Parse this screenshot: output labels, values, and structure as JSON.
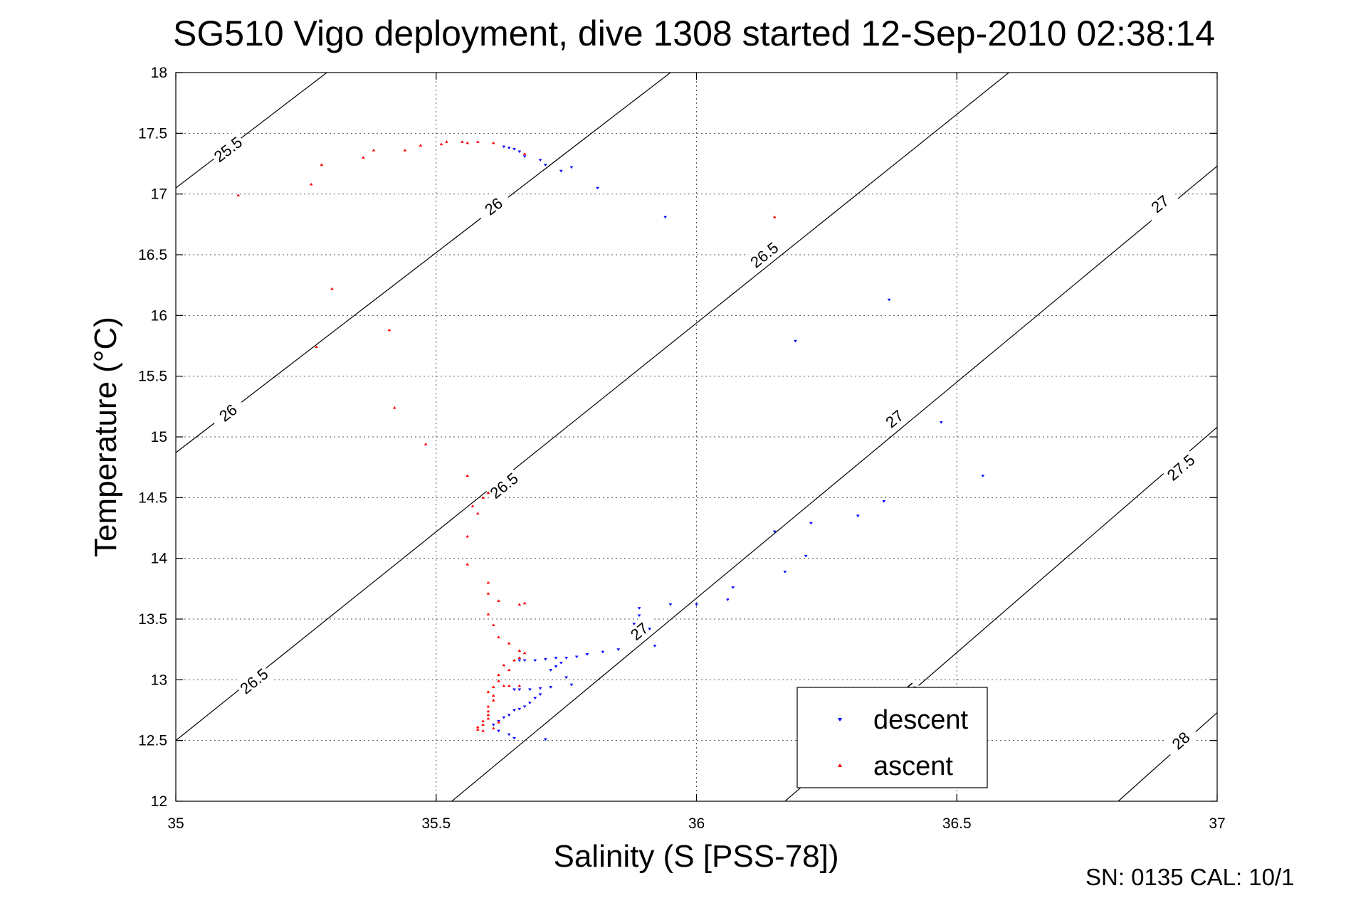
{
  "chart_data": {
    "type": "scatter",
    "title": "SG510 Vigo deployment, dive 1308 started 12-Sep-2010 02:38:14",
    "xlabel": "Salinity (S [PSS-78])",
    "ylabel": "Temperature (°C)",
    "xlim": [
      35,
      37
    ],
    "ylim": [
      12,
      18
    ],
    "x_ticks": [
      35,
      35.5,
      36,
      36.5,
      37
    ],
    "x_tick_labels": [
      "35",
      "35.5",
      "36",
      "36.5",
      "37"
    ],
    "y_ticks": [
      12,
      12.5,
      13,
      13.5,
      14,
      14.5,
      15,
      15.5,
      16,
      16.5,
      17,
      17.5,
      18
    ],
    "y_tick_labels": [
      "12",
      "12.5",
      "13",
      "13.5",
      "14",
      "14.5",
      "15",
      "15.5",
      "16",
      "16.5",
      "17",
      "17.5",
      "18"
    ],
    "grid": true,
    "legend_position": "bottom-right",
    "footer": "SN: 0135  CAL: 10/1",
    "density_contours": [
      {
        "value": 25.5,
        "label": "25.5",
        "points": [
          [
            35.0,
            17.05
          ],
          [
            35.29,
            18.0
          ]
        ],
        "label_points": [
          [
            35.1,
            17.37
          ]
        ]
      },
      {
        "value": 26,
        "label": "26",
        "points": [
          [
            35.0,
            14.87
          ],
          [
            35.95,
            18.0
          ]
        ],
        "label_points": [
          [
            35.1,
            15.2
          ],
          [
            35.61,
            16.9
          ]
        ]
      },
      {
        "value": 26.5,
        "label": "26.5",
        "points": [
          [
            35.0,
            12.5
          ],
          [
            36.6,
            18.0
          ]
        ],
        "label_points": [
          [
            35.15,
            12.99
          ],
          [
            35.63,
            14.6
          ],
          [
            36.13,
            16.5
          ]
        ]
      },
      {
        "value": 27,
        "label": "27",
        "points": [
          [
            35.53,
            12.0
          ],
          [
            37.0,
            17.23
          ]
        ],
        "label_points": [
          [
            35.89,
            13.4
          ],
          [
            36.38,
            15.15
          ],
          [
            36.89,
            16.92
          ]
        ]
      },
      {
        "value": 27.5,
        "label": "27.5",
        "points": [
          [
            36.17,
            12.0
          ],
          [
            37.0,
            15.08
          ]
        ],
        "label_points": [
          [
            36.4,
            12.87
          ],
          [
            36.93,
            14.75
          ]
        ]
      },
      {
        "value": 28,
        "label": "28",
        "points": [
          [
            36.81,
            12.0
          ],
          [
            37.0,
            12.73
          ]
        ],
        "label_points": [
          [
            36.93,
            12.5
          ]
        ]
      }
    ],
    "series": [
      {
        "name": "descent",
        "color": "#0000ff",
        "marker": "triangle-down",
        "points": [
          [
            35.63,
            17.39
          ],
          [
            35.64,
            17.38
          ],
          [
            35.65,
            17.37
          ],
          [
            35.66,
            17.35
          ],
          [
            35.67,
            17.31
          ],
          [
            35.7,
            17.28
          ],
          [
            35.71,
            17.24
          ],
          [
            35.74,
            17.19
          ],
          [
            35.76,
            17.22
          ],
          [
            35.81,
            17.05
          ],
          [
            35.94,
            16.81
          ],
          [
            36.37,
            16.13
          ],
          [
            36.19,
            15.79
          ],
          [
            36.47,
            15.12
          ],
          [
            36.55,
            14.68
          ],
          [
            36.36,
            14.47
          ],
          [
            36.31,
            14.35
          ],
          [
            36.22,
            14.29
          ],
          [
            36.15,
            14.22
          ],
          [
            36.21,
            14.02
          ],
          [
            36.17,
            13.89
          ],
          [
            36.07,
            13.76
          ],
          [
            36.06,
            13.66
          ],
          [
            36.0,
            13.62
          ],
          [
            35.95,
            13.62
          ],
          [
            35.89,
            13.59
          ],
          [
            35.89,
            13.53
          ],
          [
            35.88,
            13.46
          ],
          [
            35.91,
            13.42
          ],
          [
            35.92,
            13.28
          ],
          [
            35.85,
            13.25
          ],
          [
            35.82,
            13.23
          ],
          [
            35.79,
            13.21
          ],
          [
            35.77,
            13.19
          ],
          [
            35.75,
            13.18
          ],
          [
            35.73,
            13.18
          ],
          [
            35.71,
            13.17
          ],
          [
            35.69,
            13.16
          ],
          [
            35.67,
            13.16
          ],
          [
            35.66,
            13.16
          ],
          [
            35.74,
            13.14
          ],
          [
            35.73,
            13.11
          ],
          [
            35.72,
            13.08
          ],
          [
            35.75,
            13.02
          ],
          [
            35.76,
            12.96
          ],
          [
            35.72,
            12.94
          ],
          [
            35.7,
            12.93
          ],
          [
            35.68,
            12.92
          ],
          [
            35.66,
            12.92
          ],
          [
            35.65,
            12.92
          ],
          [
            35.7,
            12.88
          ],
          [
            35.69,
            12.85
          ],
          [
            35.68,
            12.81
          ],
          [
            35.67,
            12.78
          ],
          [
            35.66,
            12.76
          ],
          [
            35.65,
            12.75
          ],
          [
            35.64,
            12.71
          ],
          [
            35.63,
            12.69
          ],
          [
            35.62,
            12.66
          ],
          [
            35.61,
            12.63
          ],
          [
            35.62,
            12.58
          ],
          [
            35.64,
            12.55
          ],
          [
            35.65,
            12.52
          ],
          [
            35.71,
            12.51
          ]
        ]
      },
      {
        "name": "ascent",
        "color": "#ff0000",
        "marker": "triangle-up",
        "points": [
          [
            35.12,
            16.99
          ],
          [
            35.26,
            17.08
          ],
          [
            35.28,
            17.24
          ],
          [
            35.36,
            17.3
          ],
          [
            35.38,
            17.36
          ],
          [
            35.44,
            17.36
          ],
          [
            35.47,
            17.4
          ],
          [
            35.51,
            17.41
          ],
          [
            35.52,
            17.43
          ],
          [
            35.55,
            17.43
          ],
          [
            35.56,
            17.42
          ],
          [
            35.58,
            17.43
          ],
          [
            35.61,
            17.42
          ],
          [
            35.67,
            17.33
          ],
          [
            36.15,
            16.81
          ],
          [
            35.3,
            16.22
          ],
          [
            35.27,
            15.74
          ],
          [
            35.41,
            15.88
          ],
          [
            35.42,
            15.24
          ],
          [
            35.48,
            14.94
          ],
          [
            35.56,
            14.68
          ],
          [
            35.59,
            14.5
          ],
          [
            35.6,
            14.54
          ],
          [
            35.57,
            14.43
          ],
          [
            35.58,
            14.37
          ],
          [
            35.56,
            14.18
          ],
          [
            35.56,
            13.95
          ],
          [
            35.6,
            13.8
          ],
          [
            35.6,
            13.71
          ],
          [
            35.62,
            13.65
          ],
          [
            35.66,
            13.62
          ],
          [
            35.67,
            13.63
          ],
          [
            35.6,
            13.54
          ],
          [
            35.61,
            13.45
          ],
          [
            35.62,
            13.35
          ],
          [
            35.64,
            13.3
          ],
          [
            35.66,
            13.24
          ],
          [
            35.67,
            13.22
          ],
          [
            35.66,
            13.18
          ],
          [
            35.65,
            13.16
          ],
          [
            35.63,
            13.12
          ],
          [
            35.64,
            13.08
          ],
          [
            35.62,
            13.04
          ],
          [
            35.62,
            12.99
          ],
          [
            35.63,
            12.95
          ],
          [
            35.66,
            12.95
          ],
          [
            35.64,
            12.95
          ],
          [
            35.61,
            12.94
          ],
          [
            35.6,
            12.9
          ],
          [
            35.61,
            12.87
          ],
          [
            35.61,
            12.83
          ],
          [
            35.6,
            12.78
          ],
          [
            35.6,
            12.74
          ],
          [
            35.6,
            12.71
          ],
          [
            35.6,
            12.68
          ],
          [
            35.59,
            12.66
          ],
          [
            35.59,
            12.63
          ],
          [
            35.58,
            12.61
          ],
          [
            35.58,
            12.59
          ],
          [
            35.59,
            12.58
          ],
          [
            35.61,
            12.6
          ],
          [
            35.62,
            12.65
          ]
        ]
      }
    ]
  }
}
